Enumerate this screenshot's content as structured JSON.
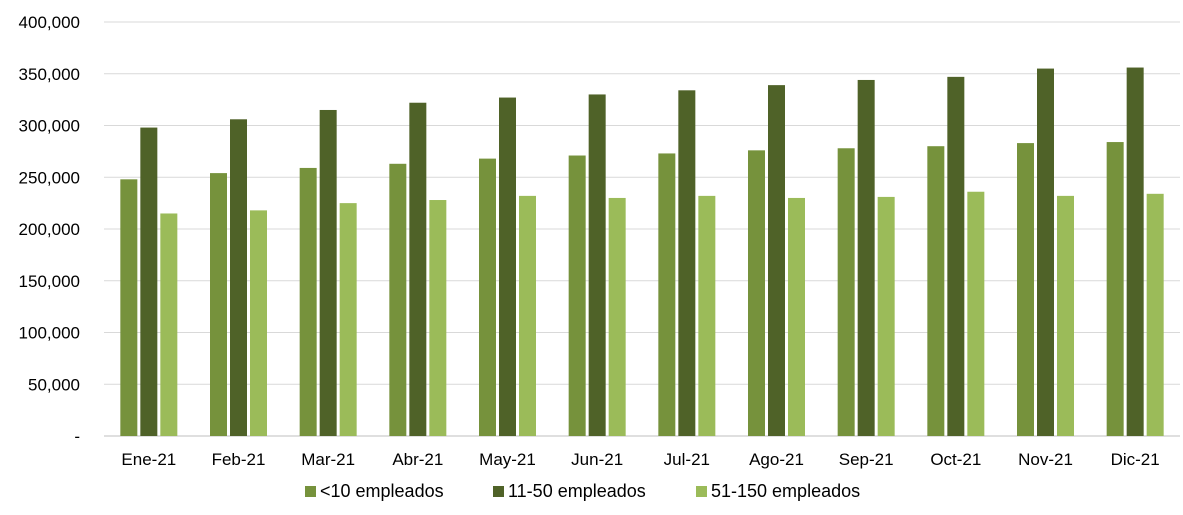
{
  "chart_data": {
    "type": "bar",
    "categories": [
      "Ene-21",
      "Feb-21",
      "Mar-21",
      "Abr-21",
      "May-21",
      "Jun-21",
      "Jul-21",
      "Ago-21",
      "Sep-21",
      "Oct-21",
      "Nov-21",
      "Dic-21"
    ],
    "series": [
      {
        "name": "<10 empleados",
        "color": "#76923c",
        "values": [
          248000,
          254000,
          259000,
          263000,
          268000,
          271000,
          273000,
          276000,
          278000,
          280000,
          283000,
          284000
        ]
      },
      {
        "name": "11-50 empleados",
        "color": "#4f6228",
        "values": [
          298000,
          306000,
          315000,
          322000,
          327000,
          330000,
          334000,
          339000,
          344000,
          347000,
          355000,
          356000
        ]
      },
      {
        "name": "51-150 empleados",
        "color": "#9bbb59",
        "values": [
          215000,
          218000,
          225000,
          228000,
          232000,
          230000,
          232000,
          230000,
          231000,
          236000,
          232000,
          234000
        ]
      }
    ],
    "y_ticks": [
      "-",
      "50,000",
      "100,000",
      "150,000",
      "200,000",
      "250,000",
      "300,000",
      "350,000",
      "400,000"
    ],
    "ylim": [
      0,
      400000
    ],
    "grid": true,
    "legend_position": "bottom",
    "title": "",
    "xlabel": "",
    "ylabel": ""
  }
}
